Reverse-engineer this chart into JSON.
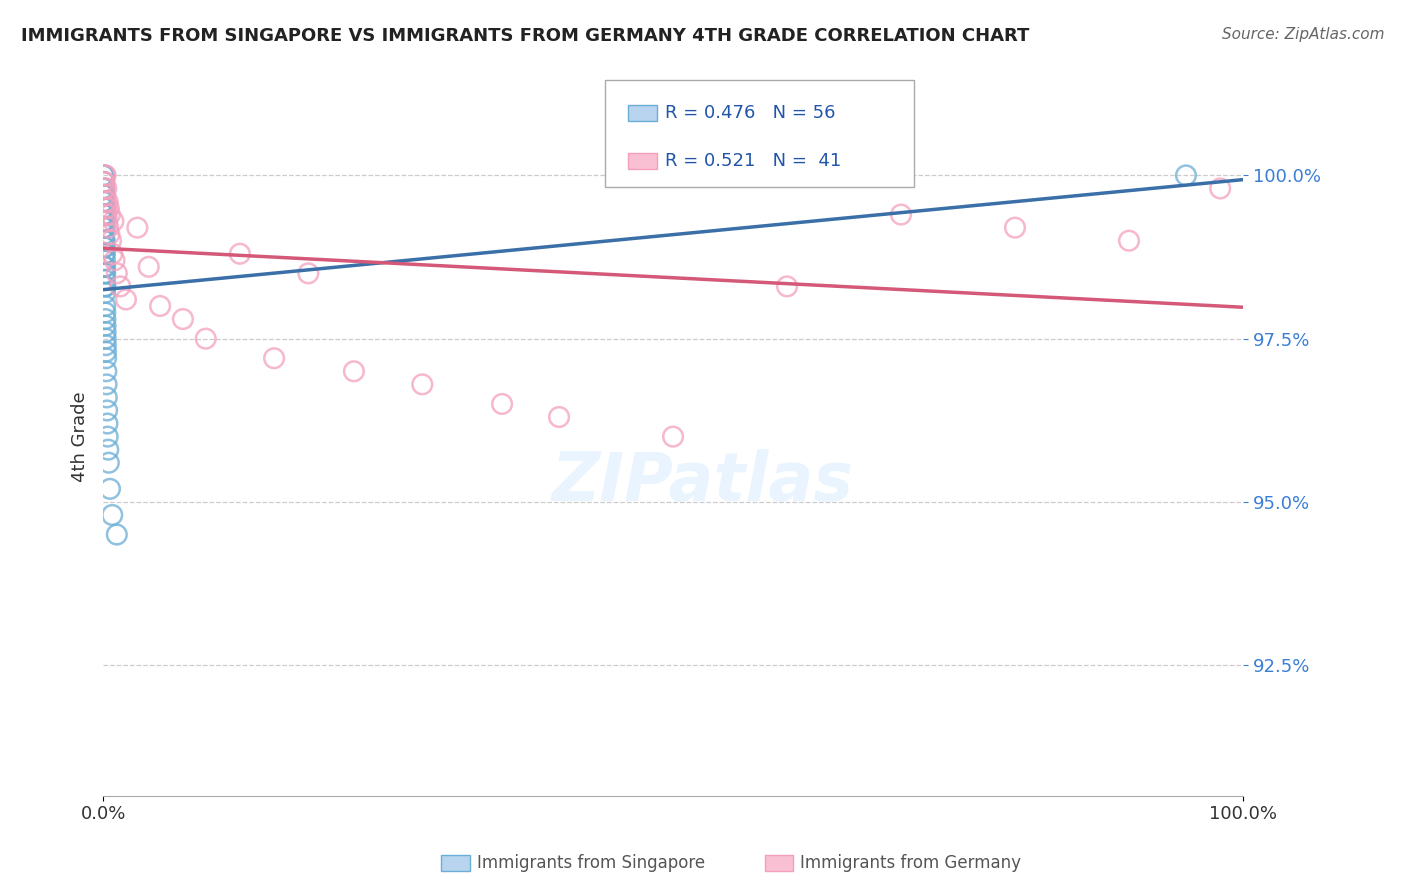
{
  "title": "IMMIGRANTS FROM SINGAPORE VS IMMIGRANTS FROM GERMANY 4TH GRADE CORRELATION CHART",
  "source": "Source: ZipAtlas.com",
  "ylabel": "4th Grade",
  "ytick_values": [
    92.5,
    95.0,
    97.5,
    100.0
  ],
  "xlim": [
    0.0,
    100.0
  ],
  "ylim": [
    90.5,
    101.5
  ],
  "color_singapore": "#6baed6",
  "color_germany": "#f4a0bc",
  "color_singapore_line": "#3a6fa8",
  "color_germany_line": "#d45878",
  "singapore_x": [
    0.02,
    0.03,
    0.03,
    0.04,
    0.04,
    0.05,
    0.05,
    0.05,
    0.06,
    0.06,
    0.07,
    0.07,
    0.08,
    0.08,
    0.09,
    0.09,
    0.1,
    0.1,
    0.1,
    0.11,
    0.11,
    0.12,
    0.12,
    0.13,
    0.13,
    0.14,
    0.14,
    0.15,
    0.15,
    0.16,
    0.16,
    0.17,
    0.17,
    0.18,
    0.18,
    0.19,
    0.2,
    0.2,
    0.21,
    0.22,
    0.23,
    0.24,
    0.25,
    0.26,
    0.28,
    0.3,
    0.32,
    0.35,
    0.38,
    0.4,
    0.45,
    0.5,
    0.6,
    0.8,
    1.2,
    95.0
  ],
  "singapore_y": [
    100.0,
    99.8,
    99.6,
    99.9,
    99.4,
    100.0,
    99.7,
    99.3,
    99.8,
    99.5,
    99.6,
    99.2,
    99.7,
    99.3,
    99.5,
    99.1,
    99.4,
    99.0,
    99.7,
    99.3,
    98.9,
    99.2,
    98.8,
    99.0,
    98.6,
    98.9,
    98.5,
    98.8,
    98.4,
    98.7,
    98.3,
    98.6,
    98.2,
    98.5,
    98.0,
    97.9,
    98.3,
    97.8,
    97.7,
    97.6,
    97.5,
    97.4,
    97.3,
    97.2,
    97.0,
    96.8,
    96.6,
    96.4,
    96.2,
    96.0,
    95.8,
    95.6,
    95.2,
    94.8,
    94.5,
    100.0
  ],
  "germany_x": [
    0.1,
    0.12,
    0.15,
    0.18,
    0.2,
    0.22,
    0.25,
    0.28,
    0.3,
    0.35,
    0.4,
    0.45,
    0.5,
    0.55,
    0.6,
    0.7,
    0.8,
    0.9,
    1.0,
    1.2,
    1.5,
    2.0,
    3.0,
    4.0,
    5.0,
    7.0,
    9.0,
    12.0,
    15.0,
    18.0,
    22.0,
    28.0,
    35.0,
    40.0,
    50.0,
    60.0,
    70.0,
    80.0,
    90.0,
    98.0,
    0.05
  ],
  "germany_y": [
    99.8,
    99.9,
    100.0,
    99.7,
    99.6,
    100.0,
    99.5,
    99.8,
    99.4,
    99.3,
    99.6,
    99.2,
    99.5,
    99.1,
    99.4,
    99.0,
    98.8,
    99.3,
    98.7,
    98.5,
    98.3,
    98.1,
    99.2,
    98.6,
    98.0,
    97.8,
    97.5,
    98.8,
    97.2,
    98.5,
    97.0,
    96.8,
    96.5,
    96.3,
    96.0,
    98.3,
    99.4,
    99.2,
    99.0,
    99.8,
    99.9
  ]
}
